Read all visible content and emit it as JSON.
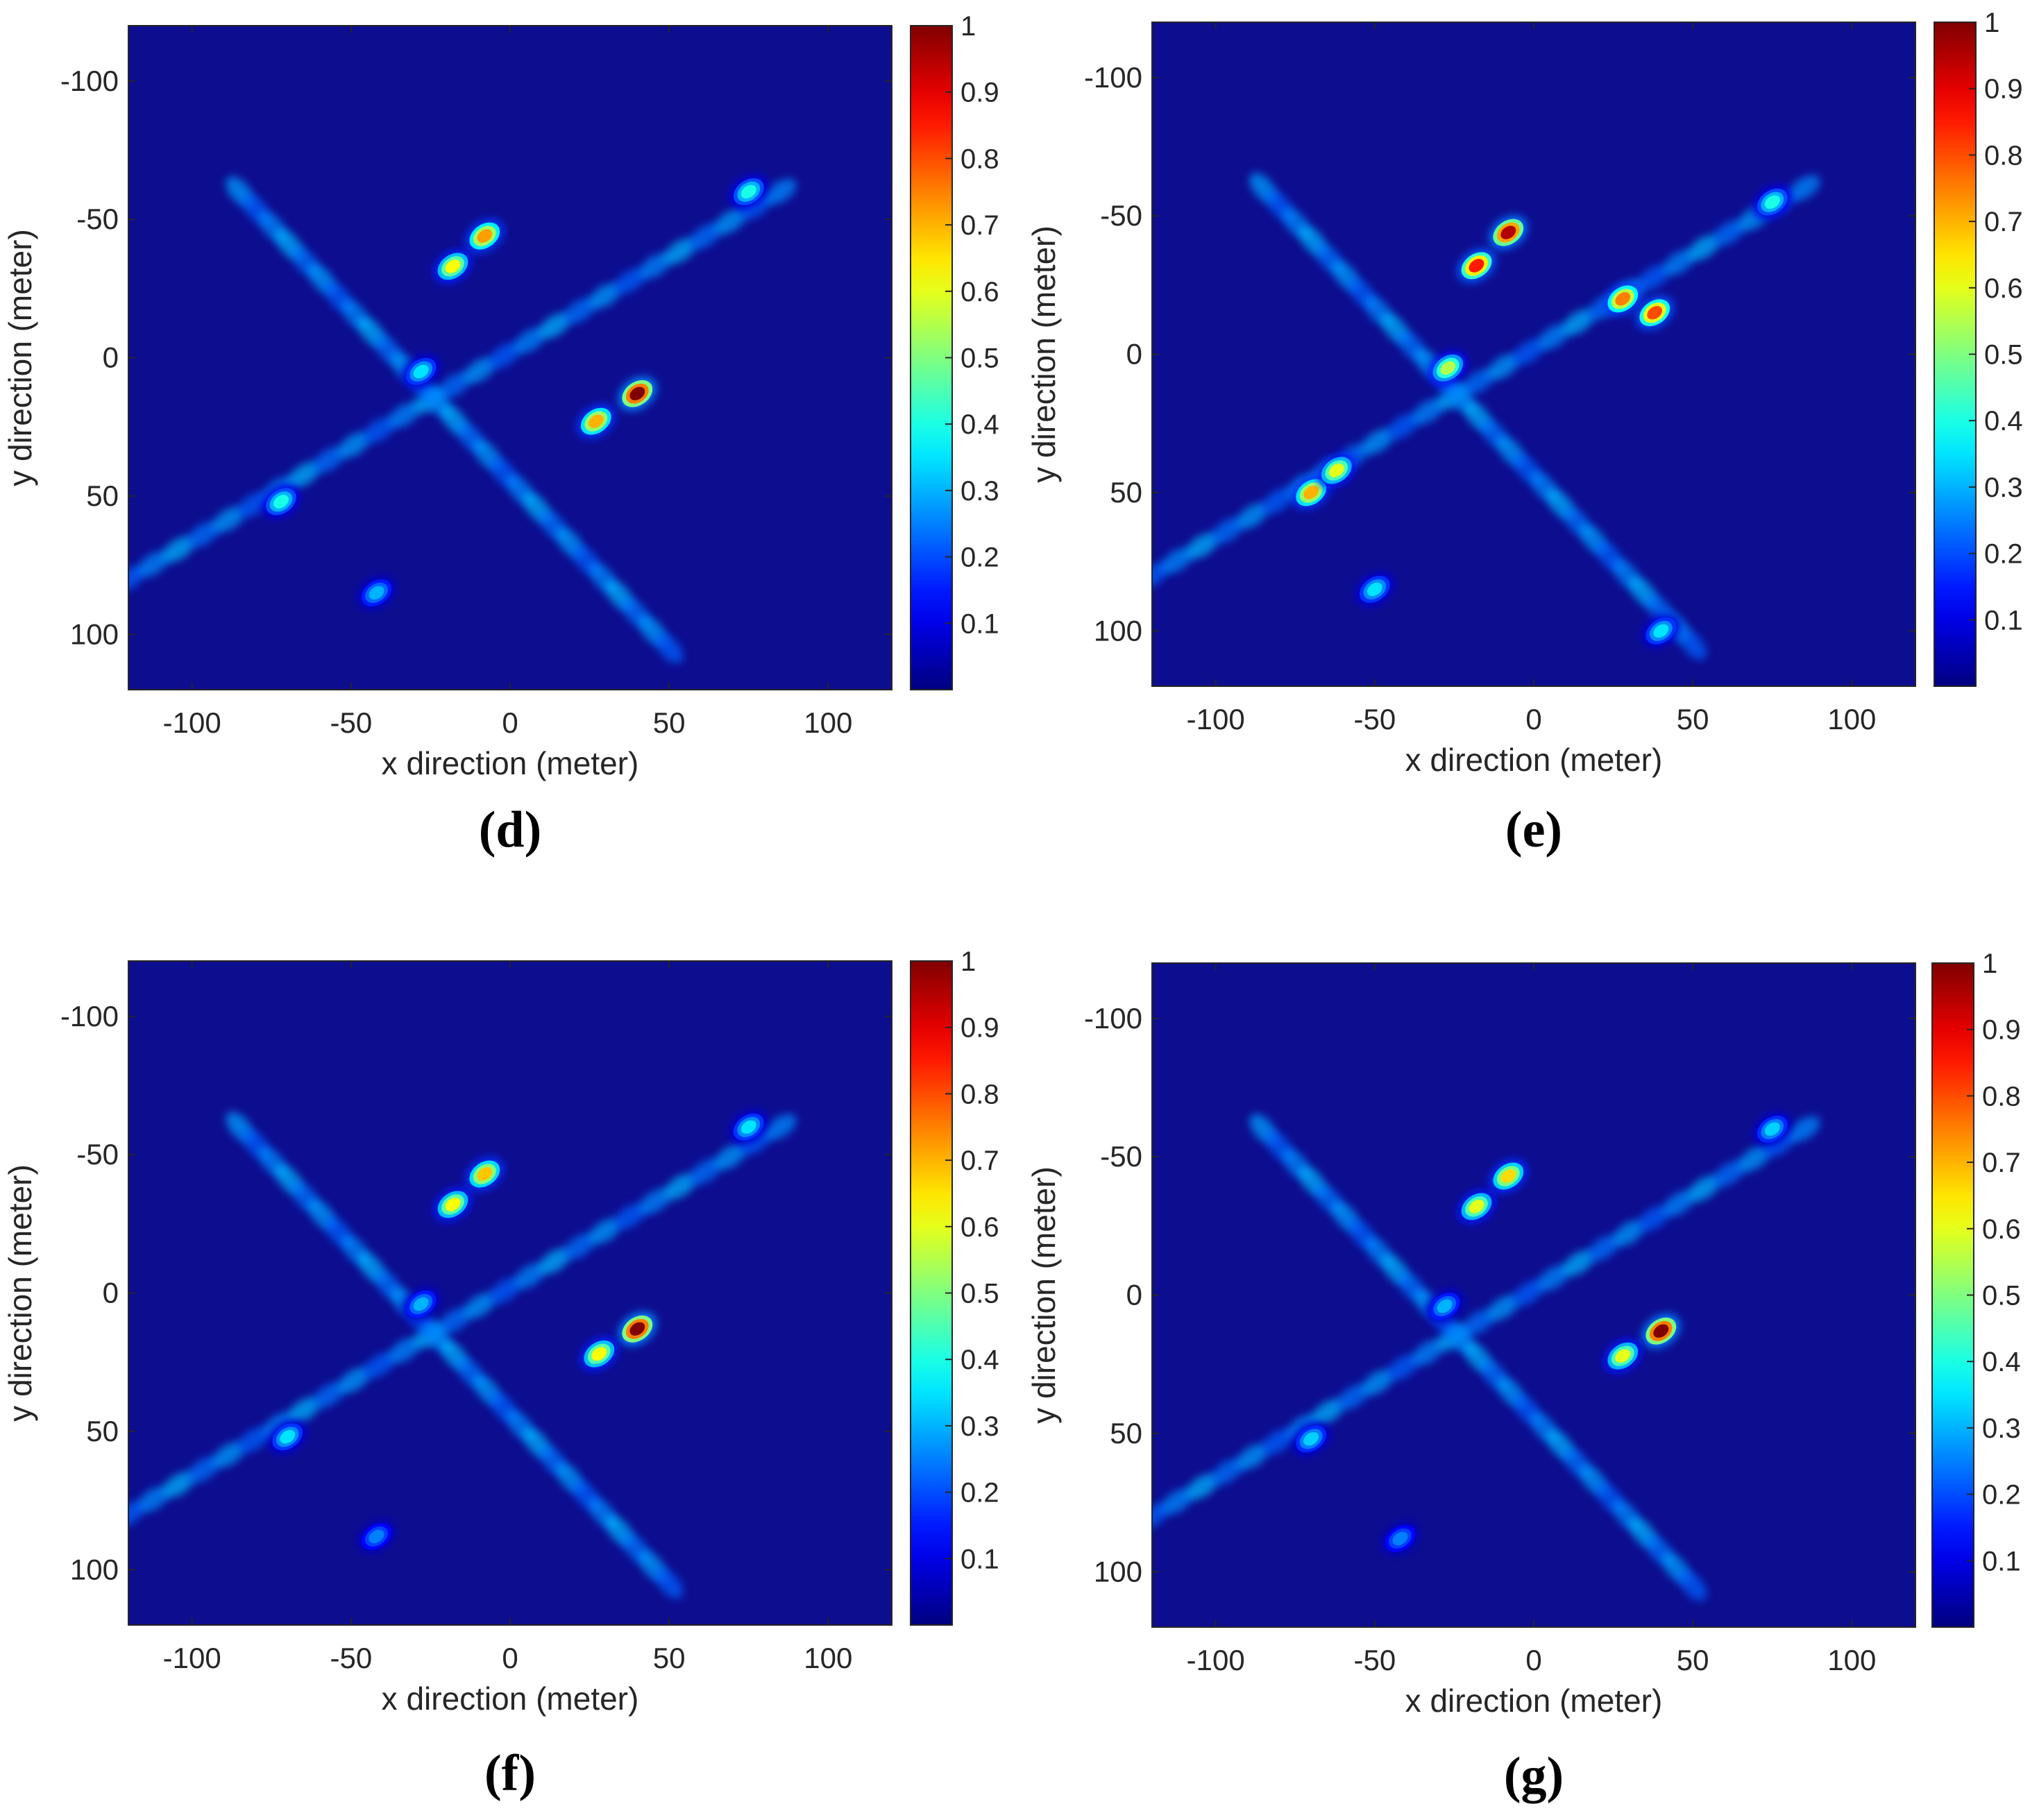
{
  "chart_data": [
    {
      "type": "heatmap",
      "panel_label": "(d)",
      "xlabel": "x direction (meter)",
      "ylabel": "y direction (meter)",
      "xlim": [
        -120,
        120
      ],
      "ylim": [
        -120,
        120
      ],
      "y_reversed": true,
      "xticks": [
        -100,
        -50,
        0,
        50,
        100
      ],
      "yticks": [
        -100,
        -50,
        0,
        50,
        100
      ],
      "colormap": "jet",
      "background": "#0d0d8f",
      "colorbar": {
        "range": [
          0,
          1
        ],
        "ticks": [
          0.1,
          0.2,
          0.3,
          0.4,
          0.5,
          0.6,
          0.7,
          0.8,
          0.9,
          1
        ]
      },
      "fuselage": {
        "from": [
          -120,
          80
        ],
        "to": [
          85,
          -60
        ]
      },
      "wing": {
        "from": [
          -85,
          -60
        ],
        "to": [
          50,
          105
        ]
      },
      "hotspots": [
        {
          "x": 40,
          "y": 13,
          "value": 1.0
        },
        {
          "x": 27,
          "y": 23,
          "value": 0.7
        },
        {
          "x": -8,
          "y": -44,
          "value": 0.72
        },
        {
          "x": -18,
          "y": -33,
          "value": 0.62
        },
        {
          "x": 75,
          "y": -60,
          "value": 0.4
        },
        {
          "x": -72,
          "y": 52,
          "value": 0.4
        },
        {
          "x": -42,
          "y": 85,
          "value": 0.3
        },
        {
          "x": -28,
          "y": 5,
          "value": 0.35
        }
      ]
    },
    {
      "type": "heatmap",
      "panel_label": "(e)",
      "xlabel": "x direction (meter)",
      "ylabel": "y direction (meter)",
      "xlim": [
        -120,
        120
      ],
      "ylim": [
        -120,
        120
      ],
      "y_reversed": true,
      "xticks": [
        -100,
        -50,
        0,
        50,
        100
      ],
      "yticks": [
        -100,
        -50,
        0,
        50,
        100
      ],
      "colormap": "jet",
      "background": "#0d0d8f",
      "colorbar": {
        "range": [
          0,
          1
        ],
        "ticks": [
          0.1,
          0.2,
          0.3,
          0.4,
          0.5,
          0.6,
          0.7,
          0.8,
          0.9,
          1
        ]
      },
      "fuselage": {
        "from": [
          -120,
          80
        ],
        "to": [
          85,
          -60
        ]
      },
      "wing": {
        "from": [
          -85,
          -60
        ],
        "to": [
          50,
          105
        ]
      },
      "hotspots": [
        {
          "x": -8,
          "y": -44,
          "value": 0.95
        },
        {
          "x": -18,
          "y": -32,
          "value": 0.85
        },
        {
          "x": 38,
          "y": -15,
          "value": 0.8
        },
        {
          "x": 28,
          "y": -20,
          "value": 0.75
        },
        {
          "x": -70,
          "y": 50,
          "value": 0.7
        },
        {
          "x": -62,
          "y": 42,
          "value": 0.6
        },
        {
          "x": 75,
          "y": -55,
          "value": 0.4
        },
        {
          "x": -27,
          "y": 5,
          "value": 0.55
        },
        {
          "x": -50,
          "y": 85,
          "value": 0.35
        },
        {
          "x": 40,
          "y": 100,
          "value": 0.35
        }
      ]
    },
    {
      "type": "heatmap",
      "panel_label": "(f)",
      "xlabel": "x direction (meter)",
      "ylabel": "y direction (meter)",
      "xlim": [
        -120,
        120
      ],
      "ylim": [
        -120,
        120
      ],
      "y_reversed": true,
      "xticks": [
        -100,
        -50,
        0,
        50,
        100
      ],
      "yticks": [
        -100,
        -50,
        0,
        50,
        100
      ],
      "colormap": "jet",
      "background": "#0d0d8f",
      "colorbar": {
        "range": [
          0,
          1
        ],
        "ticks": [
          0.1,
          0.2,
          0.3,
          0.4,
          0.5,
          0.6,
          0.7,
          0.8,
          0.9,
          1
        ]
      },
      "fuselage": {
        "from": [
          -120,
          80
        ],
        "to": [
          85,
          -60
        ]
      },
      "wing": {
        "from": [
          -85,
          -60
        ],
        "to": [
          50,
          105
        ]
      },
      "hotspots": [
        {
          "x": 40,
          "y": 13,
          "value": 1.0
        },
        {
          "x": 28,
          "y": 22,
          "value": 0.62
        },
        {
          "x": -8,
          "y": -43,
          "value": 0.68
        },
        {
          "x": -18,
          "y": -32,
          "value": 0.62
        },
        {
          "x": 75,
          "y": -60,
          "value": 0.35
        },
        {
          "x": -70,
          "y": 52,
          "value": 0.35
        },
        {
          "x": -42,
          "y": 88,
          "value": 0.25
        },
        {
          "x": -28,
          "y": 4,
          "value": 0.3
        }
      ]
    },
    {
      "type": "heatmap",
      "panel_label": "(g)",
      "xlabel": "x direction (meter)",
      "ylabel": "y direction (meter)",
      "xlim": [
        -120,
        120
      ],
      "ylim": [
        -120,
        120
      ],
      "y_reversed": true,
      "xticks": [
        -100,
        -50,
        0,
        50,
        100
      ],
      "yticks": [
        -100,
        -50,
        0,
        50,
        100
      ],
      "colormap": "jet",
      "background": "#0d0d8f",
      "colorbar": {
        "range": [
          0,
          1
        ],
        "ticks": [
          0.1,
          0.2,
          0.3,
          0.4,
          0.5,
          0.6,
          0.7,
          0.8,
          0.9,
          1
        ]
      },
      "fuselage": {
        "from": [
          -120,
          80
        ],
        "to": [
          85,
          -60
        ]
      },
      "wing": {
        "from": [
          -85,
          -60
        ],
        "to": [
          50,
          105
        ]
      },
      "hotspots": [
        {
          "x": 40,
          "y": 13,
          "value": 1.0
        },
        {
          "x": 28,
          "y": 22,
          "value": 0.6
        },
        {
          "x": -8,
          "y": -43,
          "value": 0.66
        },
        {
          "x": -18,
          "y": -32,
          "value": 0.6
        },
        {
          "x": 75,
          "y": -60,
          "value": 0.33
        },
        {
          "x": -70,
          "y": 52,
          "value": 0.33
        },
        {
          "x": -42,
          "y": 88,
          "value": 0.25
        },
        {
          "x": -28,
          "y": 4,
          "value": 0.3
        }
      ]
    }
  ]
}
